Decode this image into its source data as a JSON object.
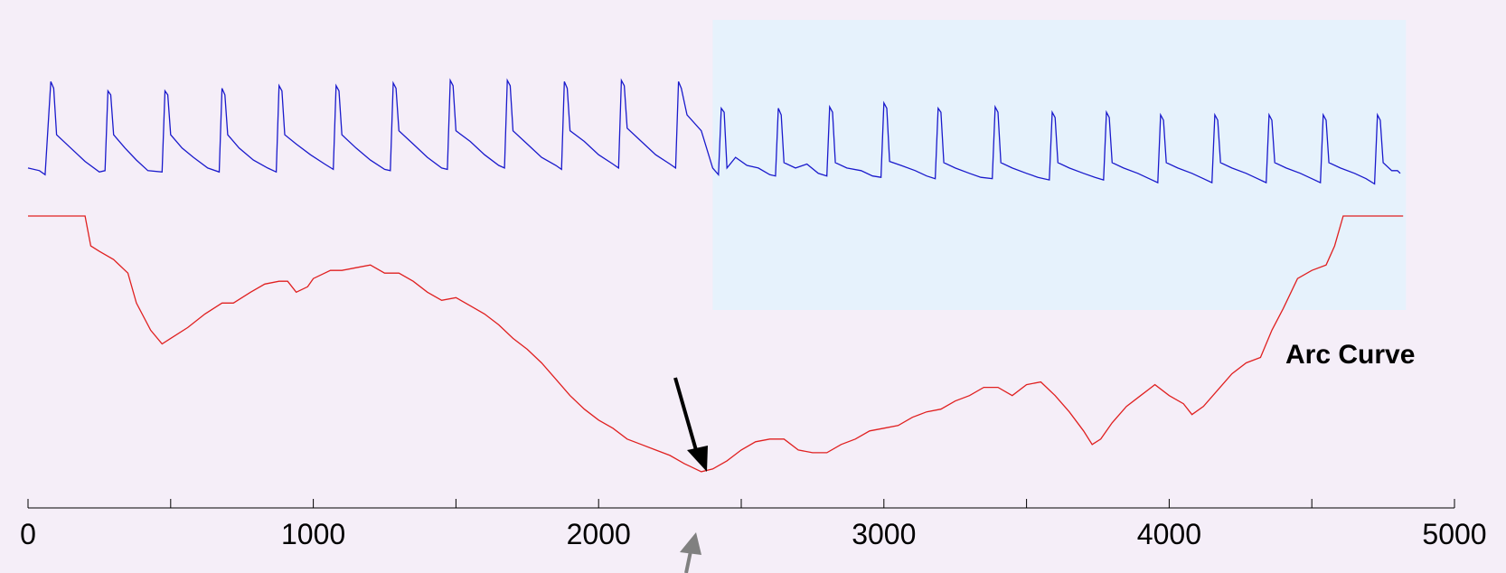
{
  "chart_data": {
    "type": "line",
    "title": "",
    "xlabel": "",
    "ylabel": "",
    "xlim": [
      0,
      5000
    ],
    "xticks": [
      0,
      500,
      1000,
      1500,
      2000,
      2500,
      3000,
      3500,
      4000,
      4500,
      5000
    ],
    "xtick_labels": [
      "0",
      "",
      "1000",
      "",
      "2000",
      "",
      "3000",
      "",
      "4000",
      "",
      "5000"
    ],
    "grid": false,
    "highlight_region": {
      "x": [
        2400,
        4830
      ],
      "color": "#e6f2fc"
    },
    "annotations": [
      {
        "text": "Arc Curve",
        "x": 4300
      },
      {
        "type": "arrow",
        "color": "#000000",
        "x": 2360
      },
      {
        "type": "arrow",
        "color": "#808080",
        "x": 2360
      }
    ],
    "series": [
      {
        "name": "",
        "color": "#1a1acc",
        "description_free": true,
        "values": [
          [
            0,
            0.3
          ],
          [
            40,
            0.28
          ],
          [
            60,
            0.25
          ],
          [
            80,
            0.95
          ],
          [
            90,
            0.9
          ],
          [
            100,
            0.55
          ],
          [
            150,
            0.45
          ],
          [
            200,
            0.35
          ],
          [
            250,
            0.27
          ],
          [
            270,
            0.28
          ],
          [
            280,
            0.88
          ],
          [
            290,
            0.85
          ],
          [
            300,
            0.55
          ],
          [
            340,
            0.45
          ],
          [
            380,
            0.36
          ],
          [
            420,
            0.28
          ],
          [
            470,
            0.27
          ],
          [
            480,
            0.88
          ],
          [
            490,
            0.85
          ],
          [
            500,
            0.55
          ],
          [
            540,
            0.45
          ],
          [
            580,
            0.38
          ],
          [
            630,
            0.3
          ],
          [
            670,
            0.27
          ],
          [
            680,
            0.9
          ],
          [
            690,
            0.85
          ],
          [
            700,
            0.55
          ],
          [
            740,
            0.45
          ],
          [
            790,
            0.36
          ],
          [
            840,
            0.3
          ],
          [
            870,
            0.27
          ],
          [
            880,
            0.92
          ],
          [
            890,
            0.88
          ],
          [
            900,
            0.55
          ],
          [
            940,
            0.48
          ],
          [
            990,
            0.4
          ],
          [
            1040,
            0.33
          ],
          [
            1070,
            0.29
          ],
          [
            1080,
            0.92
          ],
          [
            1090,
            0.88
          ],
          [
            1100,
            0.55
          ],
          [
            1150,
            0.45
          ],
          [
            1200,
            0.36
          ],
          [
            1250,
            0.29
          ],
          [
            1270,
            0.28
          ],
          [
            1280,
            0.94
          ],
          [
            1290,
            0.9
          ],
          [
            1300,
            0.58
          ],
          [
            1350,
            0.48
          ],
          [
            1400,
            0.38
          ],
          [
            1450,
            0.3
          ],
          [
            1470,
            0.29
          ],
          [
            1480,
            0.96
          ],
          [
            1490,
            0.92
          ],
          [
            1500,
            0.58
          ],
          [
            1550,
            0.5
          ],
          [
            1600,
            0.4
          ],
          [
            1650,
            0.32
          ],
          [
            1670,
            0.3
          ],
          [
            1680,
            0.96
          ],
          [
            1690,
            0.92
          ],
          [
            1700,
            0.58
          ],
          [
            1750,
            0.48
          ],
          [
            1800,
            0.38
          ],
          [
            1850,
            0.32
          ],
          [
            1870,
            0.29
          ],
          [
            1880,
            0.95
          ],
          [
            1890,
            0.9
          ],
          [
            1900,
            0.58
          ],
          [
            1950,
            0.5
          ],
          [
            2000,
            0.4
          ],
          [
            2050,
            0.33
          ],
          [
            2070,
            0.3
          ],
          [
            2080,
            0.96
          ],
          [
            2090,
            0.92
          ],
          [
            2100,
            0.6
          ],
          [
            2150,
            0.5
          ],
          [
            2200,
            0.4
          ],
          [
            2250,
            0.33
          ],
          [
            2270,
            0.3
          ],
          [
            2280,
            0.95
          ],
          [
            2290,
            0.9
          ],
          [
            2310,
            0.7
          ],
          [
            2360,
            0.58
          ],
          [
            2400,
            0.3
          ],
          [
            2420,
            0.25
          ],
          [
            2430,
            0.75
          ],
          [
            2440,
            0.72
          ],
          [
            2450,
            0.3
          ],
          [
            2480,
            0.38
          ],
          [
            2520,
            0.32
          ],
          [
            2560,
            0.3
          ],
          [
            2600,
            0.25
          ],
          [
            2620,
            0.24
          ],
          [
            2630,
            0.75
          ],
          [
            2640,
            0.7
          ],
          [
            2650,
            0.34
          ],
          [
            2690,
            0.3
          ],
          [
            2730,
            0.33
          ],
          [
            2770,
            0.26
          ],
          [
            2800,
            0.24
          ],
          [
            2810,
            0.76
          ],
          [
            2820,
            0.72
          ],
          [
            2830,
            0.34
          ],
          [
            2870,
            0.3
          ],
          [
            2920,
            0.28
          ],
          [
            2960,
            0.24
          ],
          [
            2990,
            0.23
          ],
          [
            3000,
            0.79
          ],
          [
            3010,
            0.75
          ],
          [
            3020,
            0.35
          ],
          [
            3060,
            0.32
          ],
          [
            3110,
            0.28
          ],
          [
            3150,
            0.24
          ],
          [
            3180,
            0.22
          ],
          [
            3190,
            0.75
          ],
          [
            3200,
            0.72
          ],
          [
            3210,
            0.34
          ],
          [
            3250,
            0.3
          ],
          [
            3300,
            0.26
          ],
          [
            3340,
            0.23
          ],
          [
            3380,
            0.22
          ],
          [
            3390,
            0.76
          ],
          [
            3400,
            0.72
          ],
          [
            3410,
            0.34
          ],
          [
            3450,
            0.3
          ],
          [
            3500,
            0.26
          ],
          [
            3540,
            0.23
          ],
          [
            3580,
            0.21
          ],
          [
            3590,
            0.72
          ],
          [
            3600,
            0.68
          ],
          [
            3610,
            0.34
          ],
          [
            3650,
            0.3
          ],
          [
            3700,
            0.26
          ],
          [
            3740,
            0.23
          ],
          [
            3770,
            0.21
          ],
          [
            3780,
            0.72
          ],
          [
            3790,
            0.68
          ],
          [
            3800,
            0.34
          ],
          [
            3840,
            0.3
          ],
          [
            3890,
            0.26
          ],
          [
            3930,
            0.22
          ],
          [
            3960,
            0.19
          ],
          [
            3970,
            0.7
          ],
          [
            3980,
            0.66
          ],
          [
            3990,
            0.34
          ],
          [
            4030,
            0.3
          ],
          [
            4080,
            0.26
          ],
          [
            4120,
            0.22
          ],
          [
            4150,
            0.19
          ],
          [
            4160,
            0.7
          ],
          [
            4170,
            0.66
          ],
          [
            4180,
            0.34
          ],
          [
            4220,
            0.3
          ],
          [
            4270,
            0.26
          ],
          [
            4310,
            0.22
          ],
          [
            4340,
            0.19
          ],
          [
            4350,
            0.7
          ],
          [
            4360,
            0.66
          ],
          [
            4370,
            0.34
          ],
          [
            4410,
            0.3
          ],
          [
            4460,
            0.26
          ],
          [
            4500,
            0.22
          ],
          [
            4530,
            0.19
          ],
          [
            4540,
            0.7
          ],
          [
            4550,
            0.66
          ],
          [
            4560,
            0.34
          ],
          [
            4600,
            0.3
          ],
          [
            4650,
            0.26
          ],
          [
            4690,
            0.22
          ],
          [
            4720,
            0.18
          ],
          [
            4730,
            0.7
          ],
          [
            4740,
            0.66
          ],
          [
            4750,
            0.34
          ],
          [
            4780,
            0.28
          ],
          [
            4800,
            0.28
          ],
          [
            4810,
            0.26
          ]
        ]
      },
      {
        "name": "",
        "color": "#e02020",
        "values": [
          [
            0,
            1.0
          ],
          [
            200,
            1.0
          ],
          [
            220,
            0.89
          ],
          [
            250,
            0.87
          ],
          [
            300,
            0.84
          ],
          [
            350,
            0.79
          ],
          [
            380,
            0.68
          ],
          [
            430,
            0.58
          ],
          [
            470,
            0.53
          ],
          [
            500,
            0.55
          ],
          [
            560,
            0.59
          ],
          [
            620,
            0.64
          ],
          [
            680,
            0.68
          ],
          [
            720,
            0.68
          ],
          [
            780,
            0.72
          ],
          [
            830,
            0.75
          ],
          [
            880,
            0.76
          ],
          [
            910,
            0.76
          ],
          [
            940,
            0.72
          ],
          [
            980,
            0.74
          ],
          [
            1000,
            0.77
          ],
          [
            1060,
            0.8
          ],
          [
            1100,
            0.8
          ],
          [
            1150,
            0.81
          ],
          [
            1200,
            0.82
          ],
          [
            1250,
            0.79
          ],
          [
            1300,
            0.79
          ],
          [
            1350,
            0.76
          ],
          [
            1400,
            0.72
          ],
          [
            1450,
            0.69
          ],
          [
            1500,
            0.7
          ],
          [
            1550,
            0.67
          ],
          [
            1600,
            0.64
          ],
          [
            1650,
            0.6
          ],
          [
            1700,
            0.55
          ],
          [
            1750,
            0.51
          ],
          [
            1800,
            0.46
          ],
          [
            1850,
            0.4
          ],
          [
            1900,
            0.34
          ],
          [
            1950,
            0.29
          ],
          [
            2000,
            0.25
          ],
          [
            2050,
            0.22
          ],
          [
            2100,
            0.18
          ],
          [
            2150,
            0.16
          ],
          [
            2200,
            0.14
          ],
          [
            2250,
            0.12
          ],
          [
            2300,
            0.09
          ],
          [
            2340,
            0.07
          ],
          [
            2360,
            0.06
          ],
          [
            2400,
            0.07
          ],
          [
            2450,
            0.1
          ],
          [
            2500,
            0.14
          ],
          [
            2550,
            0.17
          ],
          [
            2600,
            0.18
          ],
          [
            2650,
            0.18
          ],
          [
            2700,
            0.14
          ],
          [
            2750,
            0.13
          ],
          [
            2800,
            0.13
          ],
          [
            2850,
            0.16
          ],
          [
            2900,
            0.18
          ],
          [
            2950,
            0.21
          ],
          [
            3000,
            0.22
          ],
          [
            3050,
            0.23
          ],
          [
            3100,
            0.26
          ],
          [
            3150,
            0.28
          ],
          [
            3200,
            0.29
          ],
          [
            3250,
            0.32
          ],
          [
            3300,
            0.34
          ],
          [
            3350,
            0.37
          ],
          [
            3400,
            0.37
          ],
          [
            3450,
            0.34
          ],
          [
            3500,
            0.38
          ],
          [
            3550,
            0.39
          ],
          [
            3600,
            0.34
          ],
          [
            3650,
            0.28
          ],
          [
            3700,
            0.21
          ],
          [
            3730,
            0.16
          ],
          [
            3760,
            0.18
          ],
          [
            3800,
            0.24
          ],
          [
            3850,
            0.3
          ],
          [
            3900,
            0.34
          ],
          [
            3950,
            0.38
          ],
          [
            4000,
            0.34
          ],
          [
            4050,
            0.31
          ],
          [
            4080,
            0.27
          ],
          [
            4120,
            0.3
          ],
          [
            4170,
            0.36
          ],
          [
            4220,
            0.42
          ],
          [
            4270,
            0.46
          ],
          [
            4320,
            0.48
          ],
          [
            4360,
            0.58
          ],
          [
            4400,
            0.66
          ],
          [
            4450,
            0.77
          ],
          [
            4500,
            0.8
          ],
          [
            4550,
            0.82
          ],
          [
            4580,
            0.89
          ],
          [
            4610,
            1.0
          ],
          [
            4820,
            1.0
          ]
        ]
      }
    ]
  }
}
